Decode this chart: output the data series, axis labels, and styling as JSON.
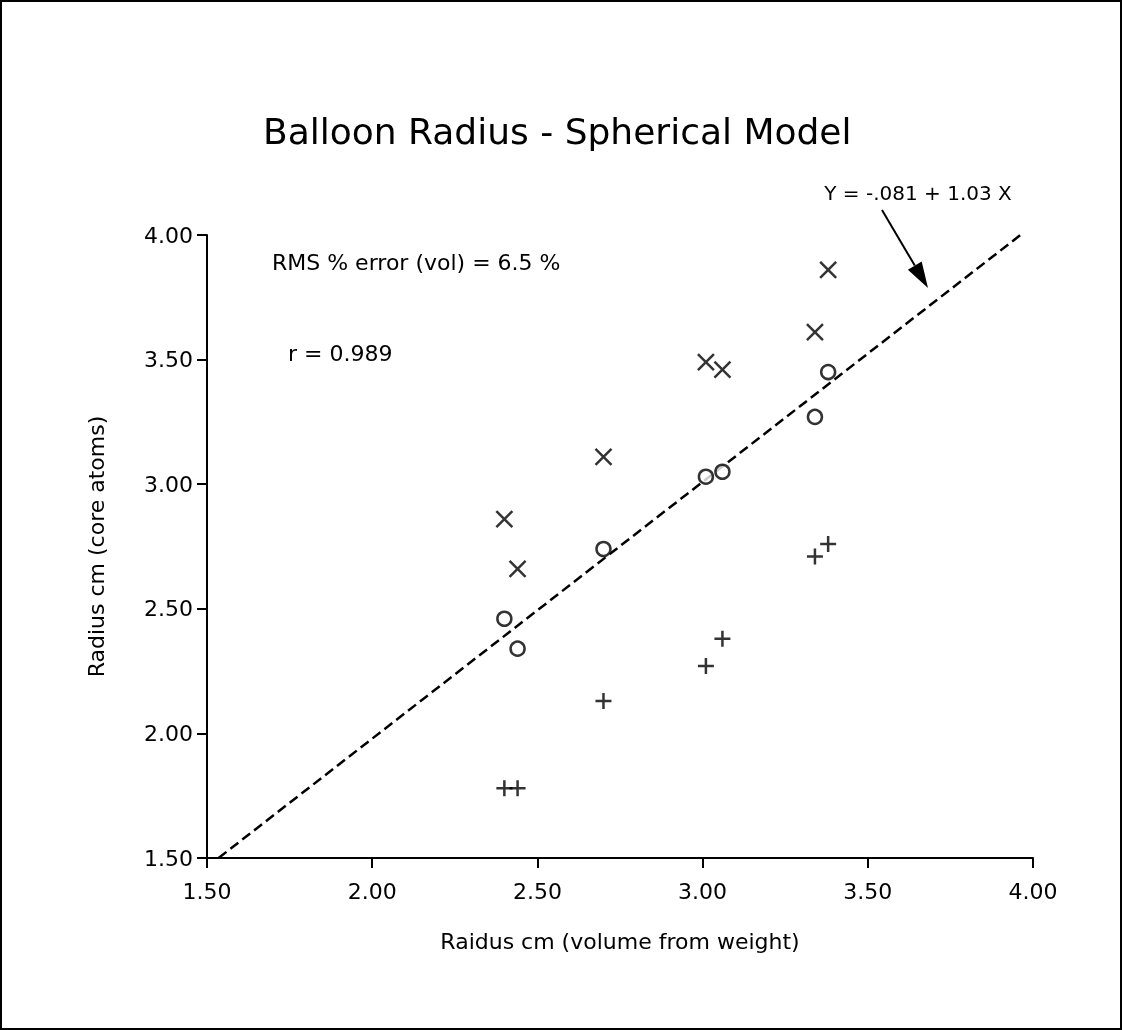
{
  "chart_data": {
    "type": "scatter",
    "title": "Balloon Radius - Spherical Model",
    "xlabel": "Raidus cm (volume from weight)",
    "ylabel": "Radius cm (core atoms)",
    "xlim": [
      1.5,
      4.0
    ],
    "ylim": [
      1.5,
      4.0
    ],
    "xticks": [
      {
        "value": 1.5,
        "label": "1.50"
      },
      {
        "value": 2.0,
        "label": "2.00"
      },
      {
        "value": 2.5,
        "label": "2.50"
      },
      {
        "value": 3.0,
        "label": "3.00"
      },
      {
        "value": 3.5,
        "label": "3.50"
      },
      {
        "value": 4.0,
        "label": "4.00"
      }
    ],
    "yticks": [
      {
        "value": 1.5,
        "label": "1.50"
      },
      {
        "value": 2.0,
        "label": "2.00"
      },
      {
        "value": 2.5,
        "label": "2.50"
      },
      {
        "value": 3.0,
        "label": "3.00"
      },
      {
        "value": 3.5,
        "label": "3.50"
      },
      {
        "value": 4.0,
        "label": "4.00"
      }
    ],
    "grid": false,
    "series": [
      {
        "color": "#000000",
        "marker": "x",
        "x": [
          2.4,
          2.44,
          2.7,
          3.01,
          3.06,
          3.34,
          3.38
        ],
        "values": [
          2.86,
          2.66,
          3.11,
          3.49,
          3.46,
          3.61,
          3.86
        ]
      },
      {
        "color": "#000000",
        "marker": "circle",
        "x": [
          2.4,
          2.44,
          2.7,
          3.01,
          3.06,
          3.34,
          3.38
        ],
        "values": [
          2.46,
          2.34,
          2.74,
          3.03,
          3.05,
          3.27,
          3.45
        ]
      },
      {
        "color": "#000000",
        "marker": "cross",
        "x": [
          2.4,
          2.44,
          2.7,
          3.01,
          3.06,
          3.34,
          3.38
        ],
        "values": [
          1.78,
          1.78,
          2.13,
          2.27,
          2.38,
          2.71,
          2.76
        ]
      },
      {
        "type": "line",
        "color": "#000000",
        "line_style": "dashed",
        "marker": "none",
        "x": [
          1.535,
          3.962
        ],
        "values": [
          1.5,
          4.0
        ]
      }
    ],
    "annotations": [
      "Y = -.081 + 1.03 X",
      "RMS % error (vol) = 6.5 %",
      "r = 0.989"
    ]
  }
}
